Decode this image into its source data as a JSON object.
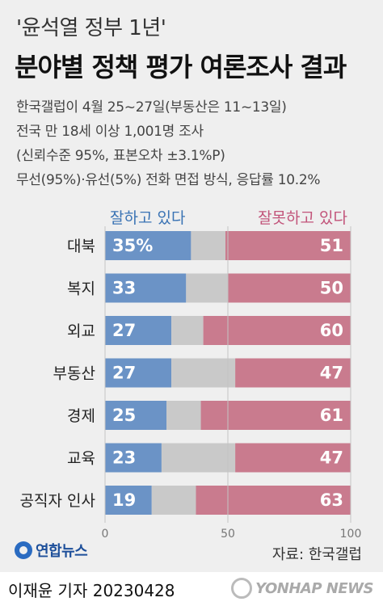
{
  "header": {
    "subtitle": "'윤석열 정부 1년'",
    "title": "분야별 정책 평가 여론조사 결과"
  },
  "info_lines": [
    "한국갤럽이 4월 25~27일(부동산은 11~13일)",
    "전국 만 18세 이상 1,001명 조사",
    "(신뢰수준 95%, 표본오차 ±3.1%P)",
    "무선(95%)·유선(5%) 전화 면접 방식, 응답률 10.2%"
  ],
  "legend": {
    "positive": "잘하고 있다",
    "negative": "잘못하고 있다"
  },
  "colors": {
    "positive": "#6b93c6",
    "neutral": "#c9c9c9",
    "negative": "#c97b8e",
    "background": "#efefef"
  },
  "chart_data": {
    "type": "bar",
    "orientation": "horizontal-stacked",
    "categories": [
      "대북",
      "복지",
      "외교",
      "부동산",
      "경제",
      "교육",
      "공직자 인사"
    ],
    "series": [
      {
        "name": "잘하고 있다",
        "values": [
          35,
          33,
          27,
          27,
          25,
          23,
          19
        ]
      },
      {
        "name": "잘못하고 있다",
        "values": [
          51,
          50,
          60,
          47,
          61,
          47,
          63
        ]
      }
    ],
    "value_labels_positive": [
      "35%",
      "33",
      "27",
      "27",
      "25",
      "23",
      "19"
    ],
    "value_labels_negative": [
      "51",
      "50",
      "60",
      "47",
      "61",
      "47",
      "63"
    ],
    "x_ticks": [
      "0",
      "50",
      "100"
    ],
    "xlim": [
      0,
      100
    ]
  },
  "footer": {
    "logo": "연합뉴스",
    "source": "자료: 한국갤럽",
    "byline": "이재윤 기자  20230428",
    "brand": "YONHAP NEWS"
  }
}
